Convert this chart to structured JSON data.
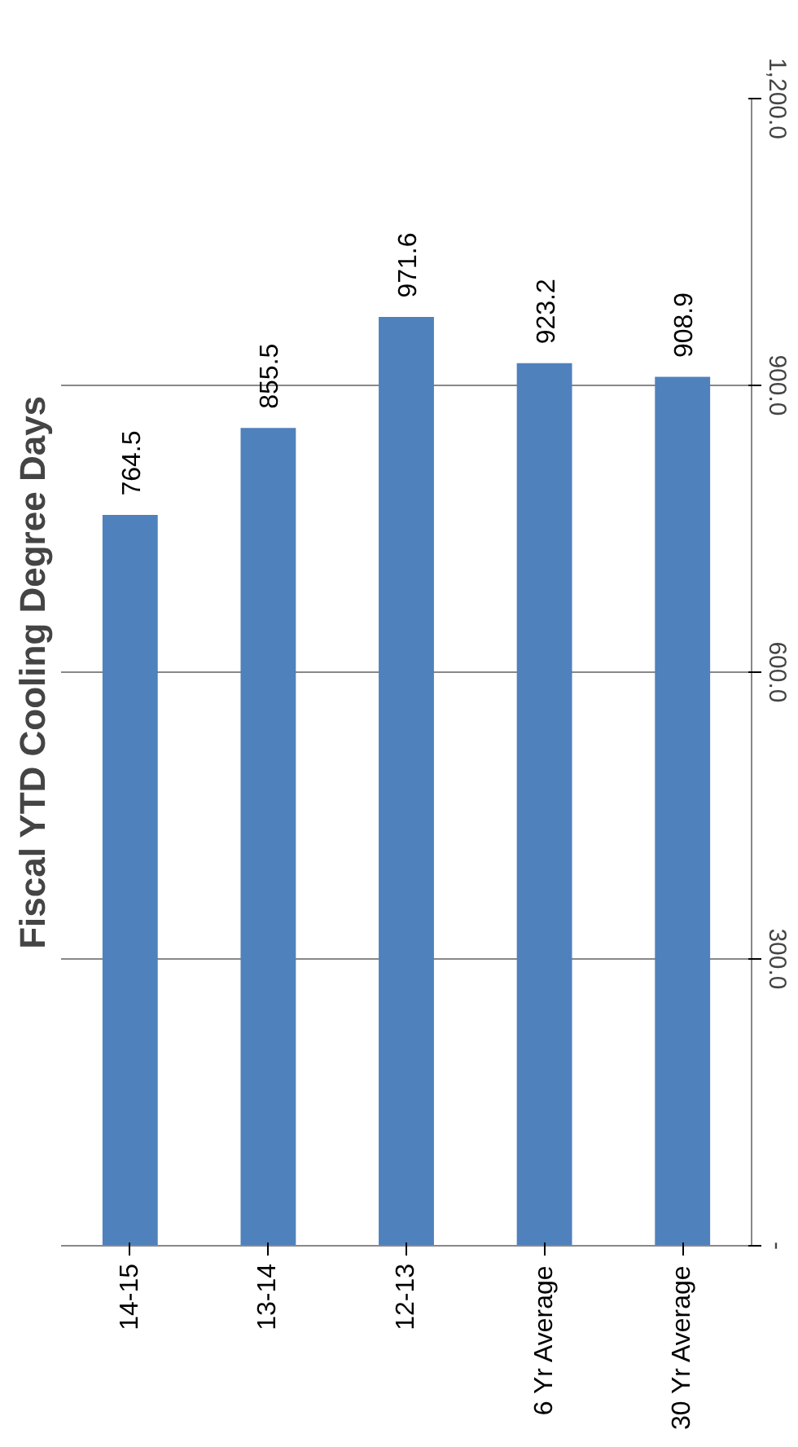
{
  "chart_data": {
    "type": "bar",
    "title": "Fiscal YTD Cooling Degree Days",
    "categories": [
      "14-15",
      "13-14",
      "12-13",
      "6 Yr Average",
      "30 Yr Average"
    ],
    "values": [
      764.5,
      855.5,
      971.6,
      923.2,
      908.9
    ],
    "color": "#4f81bd",
    "ylim": [
      0,
      1200
    ],
    "yticks": [
      {
        "value": 0,
        "label": "-"
      },
      {
        "value": 300,
        "label": "300.0"
      },
      {
        "value": 600,
        "label": "600.0"
      },
      {
        "value": 900,
        "label": "900.0"
      },
      {
        "value": 1200,
        "label": "1,200.0"
      }
    ],
    "grid": "y",
    "data_labels": true
  }
}
